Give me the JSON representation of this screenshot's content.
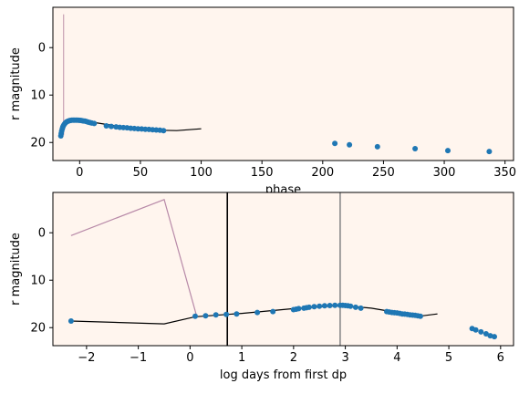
{
  "chart_data": [
    {
      "type": "scatter",
      "xlabel": "phase",
      "ylabel": "r magnitude",
      "xlim": [
        -22,
        357
      ],
      "ylim": [
        23.8,
        -8.5
      ],
      "y_inverted": true,
      "xticks": [
        0,
        50,
        100,
        150,
        200,
        250,
        300,
        350
      ],
      "yticks": [
        0,
        10,
        20
      ],
      "background": "#fff5ee",
      "series": [
        {
          "kind": "points",
          "color": "#1f77b4",
          "x": [
            -15.5,
            -15.2,
            -14.8,
            -14.3,
            -13.8,
            -13.2,
            -12.5,
            -11.8,
            -11.0,
            -10.2,
            -9.3,
            -8.4,
            -7.4,
            -6.4,
            -5.3,
            -4.2,
            -3.0,
            -1.8,
            -0.6,
            0.6,
            1.8,
            3.0,
            4.3,
            5.6,
            7.0,
            8.5,
            10.0,
            12.0,
            22,
            26,
            30,
            33,
            36,
            39,
            42,
            45,
            48,
            51,
            54,
            57,
            60,
            63,
            66,
            69,
            210,
            222,
            245,
            276,
            303,
            337
          ],
          "y": [
            18.6,
            18.1,
            17.6,
            17.1,
            16.7,
            16.4,
            16.1,
            15.9,
            15.7,
            15.6,
            15.5,
            15.4,
            15.35,
            15.3,
            15.3,
            15.28,
            15.3,
            15.3,
            15.32,
            15.35,
            15.4,
            15.45,
            15.5,
            15.6,
            15.7,
            15.8,
            15.9,
            16.0,
            16.5,
            16.6,
            16.7,
            16.8,
            16.85,
            16.9,
            17.0,
            17.05,
            17.1,
            17.15,
            17.2,
            17.25,
            17.3,
            17.35,
            17.4,
            17.5,
            20.2,
            20.5,
            20.9,
            21.3,
            21.7,
            21.9
          ]
        },
        {
          "kind": "line",
          "color": "#000000",
          "x": [
            -16,
            -15,
            -13,
            -10,
            -6,
            -2,
            2,
            6,
            10,
            20,
            40,
            60,
            80,
            100
          ],
          "y": [
            18.9,
            17.8,
            16.6,
            15.8,
            15.4,
            15.3,
            15.35,
            15.5,
            15.7,
            16.1,
            16.9,
            17.4,
            17.5,
            17.1
          ]
        },
        {
          "kind": "line",
          "color": "#c8a2b4",
          "x": [
            -13.2,
            -13.2
          ],
          "y": [
            -7.0,
            18.5
          ]
        }
      ]
    },
    {
      "type": "scatter",
      "xlabel": "log days from first dp",
      "ylabel": "r magnitude",
      "xlim": [
        -2.65,
        6.25
      ],
      "ylim": [
        23.8,
        -8.5
      ],
      "y_inverted": true,
      "xticks": [
        -2,
        -1,
        0,
        1,
        2,
        3,
        4,
        5,
        6
      ],
      "yticks": [
        0,
        10,
        20
      ],
      "background": "#fff5ee",
      "vlines": [
        {
          "x": 0.72,
          "color": "#000000"
        },
        {
          "x": 2.9,
          "color": "#8a8a8a"
        }
      ],
      "series": [
        {
          "kind": "points",
          "color": "#1f77b4",
          "x": [
            -2.3,
            0.1,
            0.3,
            0.5,
            0.7,
            0.9,
            1.3,
            1.6,
            2.0,
            2.05,
            2.1,
            2.2,
            2.25,
            2.3,
            2.4,
            2.5,
            2.6,
            2.7,
            2.8,
            2.9,
            2.95,
            3.0,
            3.05,
            3.1,
            3.2,
            3.3,
            3.8,
            3.85,
            3.9,
            3.95,
            4.0,
            4.05,
            4.1,
            4.15,
            4.2,
            4.25,
            4.3,
            4.35,
            4.4,
            4.45,
            5.45,
            5.52,
            5.62,
            5.72,
            5.8,
            5.88
          ],
          "y": [
            18.6,
            17.6,
            17.5,
            17.3,
            17.2,
            17.1,
            16.8,
            16.6,
            16.2,
            16.1,
            16.0,
            15.9,
            15.8,
            15.7,
            15.6,
            15.5,
            15.4,
            15.35,
            15.3,
            15.3,
            15.3,
            15.35,
            15.4,
            15.5,
            15.7,
            15.9,
            16.6,
            16.7,
            16.8,
            16.85,
            16.9,
            17.0,
            17.1,
            17.15,
            17.2,
            17.3,
            17.35,
            17.4,
            17.5,
            17.6,
            20.2,
            20.5,
            20.9,
            21.3,
            21.7,
            21.9
          ]
        },
        {
          "kind": "line",
          "color": "#000000",
          "x": [
            -2.3,
            -0.5,
            0.1,
            1.0,
            2.0,
            2.7,
            3.0,
            3.5,
            4.0,
            4.5,
            4.78
          ],
          "y": [
            18.6,
            19.2,
            17.7,
            17.0,
            16.0,
            15.5,
            15.4,
            15.9,
            16.8,
            17.5,
            17.1
          ]
        },
        {
          "kind": "line",
          "color": "#b88aa8",
          "x": [
            -2.3,
            -0.5,
            0.12
          ],
          "y": [
            0.6,
            -7.0,
            17.3
          ]
        }
      ]
    }
  ]
}
